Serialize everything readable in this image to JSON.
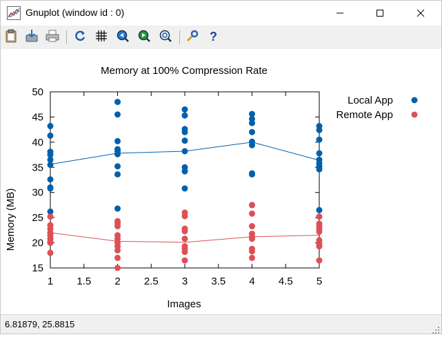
{
  "window": {
    "title": "Gnuplot (window id : 0)",
    "minimize_icon": "minimize-icon",
    "maximize_icon": "maximize-icon",
    "close_icon": "close-icon"
  },
  "toolbar": {
    "icons": [
      "clipboard-icon",
      "save-icon",
      "print-icon",
      "replot-icon",
      "grid-icon",
      "zoom-prev-icon",
      "zoom-next-icon",
      "autoscale-icon",
      "options-icon",
      "help-icon"
    ]
  },
  "status": {
    "coords": "6.81879,  25.8815"
  },
  "colors": {
    "local": "#0060ad",
    "remote": "#dd5055",
    "toolbar_bg": "#f0f0f0"
  },
  "chart_data": {
    "type": "scatter",
    "title": "Memory at 100% Compression Rate",
    "xlabel": "Images",
    "ylabel": "Memory (MB)",
    "xlim": [
      1,
      5
    ],
    "ylim": [
      15,
      50
    ],
    "xticks": [
      "1",
      "1.5",
      "2",
      "2.5",
      "3",
      "3.5",
      "4",
      "4.5",
      "5"
    ],
    "yticks": [
      "15",
      "20",
      "25",
      "30",
      "35",
      "40",
      "45",
      "50"
    ],
    "legend_position": "top-right outside",
    "grid": false,
    "series": [
      {
        "name": "Local App",
        "color": "#0060ad",
        "points": [
          [
            1,
            43.2
          ],
          [
            1,
            41.3
          ],
          [
            1,
            38.1
          ],
          [
            1,
            37.5
          ],
          [
            1,
            36.5
          ],
          [
            1,
            35.5
          ],
          [
            1,
            32.6
          ],
          [
            1,
            31.0
          ],
          [
            1,
            30.8
          ],
          [
            1,
            26.2
          ],
          [
            2,
            48.0
          ],
          [
            2,
            45.5
          ],
          [
            2,
            40.2
          ],
          [
            2,
            38.6
          ],
          [
            2,
            38.2
          ],
          [
            2,
            37.6
          ],
          [
            2,
            35.2
          ],
          [
            2,
            33.6
          ],
          [
            2,
            26.8
          ],
          [
            3,
            46.5
          ],
          [
            3,
            45.3
          ],
          [
            3,
            42.6
          ],
          [
            3,
            42.0
          ],
          [
            3,
            40.3
          ],
          [
            3,
            38.2
          ],
          [
            3,
            35.0
          ],
          [
            3,
            34.2
          ],
          [
            3,
            30.8
          ],
          [
            4,
            45.6
          ],
          [
            4,
            44.6
          ],
          [
            4,
            43.8
          ],
          [
            4,
            42.0
          ],
          [
            4,
            40.1
          ],
          [
            4,
            39.4
          ],
          [
            4,
            33.8
          ],
          [
            4,
            33.6
          ],
          [
            4,
            27.5
          ],
          [
            5,
            43.2
          ],
          [
            5,
            42.4
          ],
          [
            5,
            40.5
          ],
          [
            5,
            37.8
          ],
          [
            5,
            36.5
          ],
          [
            5,
            35.8
          ],
          [
            5,
            35.2
          ],
          [
            5,
            34.6
          ],
          [
            5,
            26.5
          ]
        ],
        "mean_line": [
          [
            1,
            35.6
          ],
          [
            2,
            37.8
          ],
          [
            3,
            38.2
          ],
          [
            4,
            40.0
          ],
          [
            5,
            36.4
          ]
        ]
      },
      {
        "name": "Remote App",
        "color": "#dd5055",
        "points": [
          [
            1,
            25.2
          ],
          [
            1,
            23.5
          ],
          [
            1,
            22.8
          ],
          [
            1,
            22.0
          ],
          [
            1,
            21.5
          ],
          [
            1,
            20.8
          ],
          [
            1,
            20.3
          ],
          [
            1,
            20.0
          ],
          [
            1,
            18.0
          ],
          [
            2,
            24.3
          ],
          [
            2,
            23.8
          ],
          [
            2,
            23.3
          ],
          [
            2,
            21.5
          ],
          [
            2,
            20.8
          ],
          [
            2,
            20.0
          ],
          [
            2,
            19.3
          ],
          [
            2,
            18.5
          ],
          [
            2,
            17.0
          ],
          [
            2,
            15.0
          ],
          [
            3,
            26.0
          ],
          [
            3,
            25.3
          ],
          [
            3,
            22.8
          ],
          [
            3,
            22.3
          ],
          [
            3,
            20.8
          ],
          [
            3,
            19.3
          ],
          [
            3,
            18.8
          ],
          [
            3,
            18.2
          ],
          [
            3,
            16.5
          ],
          [
            4,
            27.5
          ],
          [
            4,
            25.8
          ],
          [
            4,
            23.3
          ],
          [
            4,
            21.8
          ],
          [
            4,
            21.2
          ],
          [
            4,
            20.8
          ],
          [
            4,
            18.8
          ],
          [
            4,
            18.3
          ],
          [
            4,
            17.0
          ],
          [
            5,
            25.2
          ],
          [
            5,
            23.8
          ],
          [
            5,
            23.2
          ],
          [
            5,
            22.8
          ],
          [
            5,
            22.2
          ],
          [
            5,
            20.5
          ],
          [
            5,
            19.8
          ],
          [
            5,
            19.3
          ],
          [
            5,
            16.5
          ]
        ],
        "mean_line": [
          [
            1,
            22.0
          ],
          [
            2,
            20.3
          ],
          [
            3,
            20.1
          ],
          [
            4,
            21.2
          ],
          [
            5,
            21.5
          ]
        ]
      }
    ]
  }
}
